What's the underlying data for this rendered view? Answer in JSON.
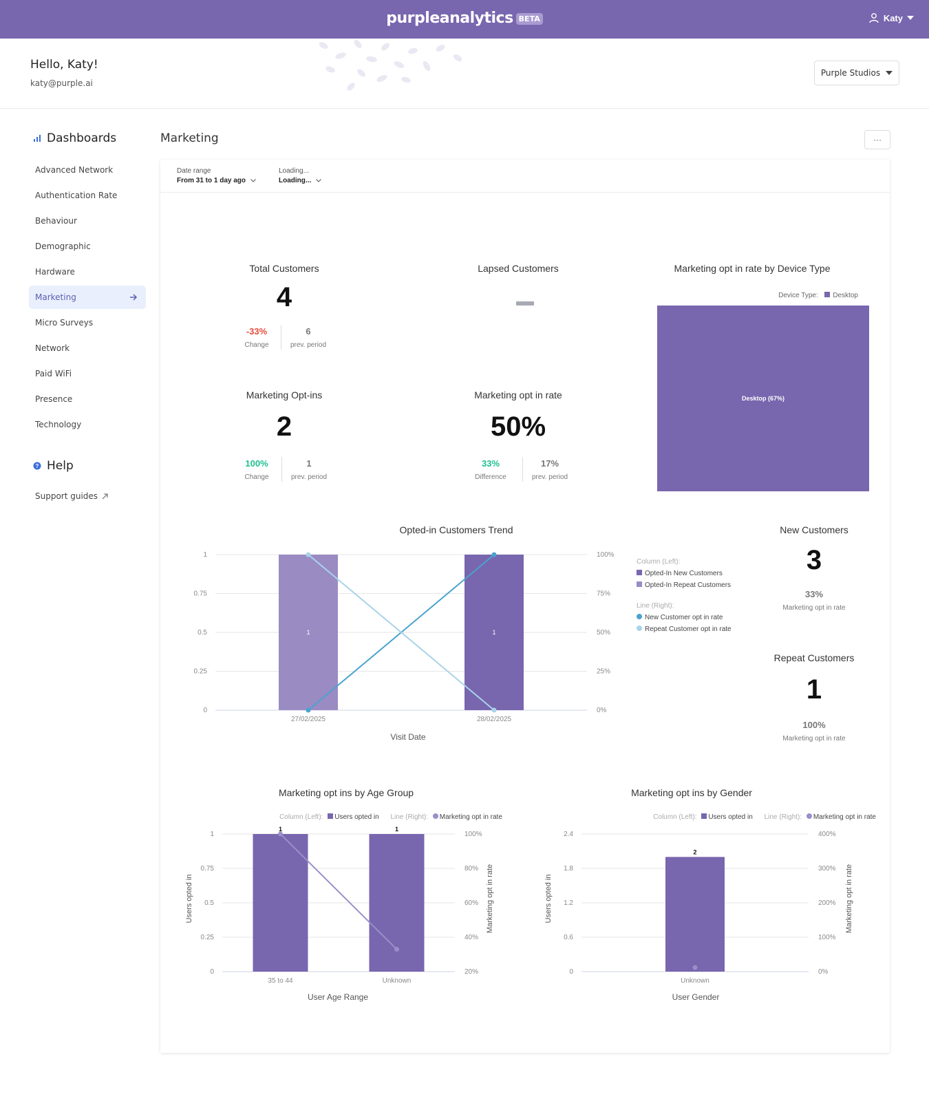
{
  "app": {
    "logo_text": "purpleanalytics",
    "beta_badge": "BETA",
    "user_name": "Katy"
  },
  "header": {
    "greeting": "Hello, Katy!",
    "email": "katy@purple.ai",
    "org_selector": "Purple Studios"
  },
  "sidebar": {
    "title": "Dashboards",
    "items": [
      {
        "label": "Advanced Network"
      },
      {
        "label": "Authentication Rate"
      },
      {
        "label": "Behaviour"
      },
      {
        "label": "Demographic"
      },
      {
        "label": "Hardware"
      },
      {
        "label": "Marketing",
        "active": true
      },
      {
        "label": "Micro Surveys"
      },
      {
        "label": "Network"
      },
      {
        "label": "Paid WiFi"
      },
      {
        "label": "Presence"
      },
      {
        "label": "Technology"
      }
    ],
    "help_title": "Help",
    "support_label": "Support guides"
  },
  "page": {
    "title": "Marketing",
    "more_label": "···"
  },
  "filters": {
    "date_range": {
      "label": "Date range",
      "value": "From 31 to 1 day ago"
    },
    "second": {
      "label": "Loading...",
      "value": "Loading..."
    }
  },
  "kpis": {
    "total_customers": {
      "title": "Total Customers",
      "value": "4",
      "change": "-33%",
      "change_label": "Change",
      "prev": "6",
      "prev_label": "prev. period"
    },
    "lapsed_customers": {
      "title": "Lapsed Customers"
    },
    "marketing_optins": {
      "title": "Marketing Opt-ins",
      "value": "2",
      "change": "100%",
      "change_label": "Change",
      "prev": "1",
      "prev_label": "prev. period"
    },
    "optin_rate": {
      "title": "Marketing opt in rate",
      "value": "50%",
      "diff": "33%",
      "diff_label": "Difference",
      "prev": "17%",
      "prev_label": "prev. period"
    },
    "new_customers": {
      "title": "New Customers",
      "value": "3",
      "rate": "33%",
      "rate_label": "Marketing opt in rate"
    },
    "repeat_customers": {
      "title": "Repeat Customers",
      "value": "1",
      "rate": "100%",
      "rate_label": "Marketing opt in rate"
    }
  },
  "colors": {
    "purple": "#7866ae",
    "light_purple": "#9a8bc3",
    "line_blue": "#4aa3cf",
    "line_lightblue": "#a9d3ea",
    "line_gray_purple": "#9a8fc9"
  },
  "chart_data": [
    {
      "id": "device_treemap",
      "type": "treemap",
      "title": "Marketing opt in rate by Device Type",
      "legend_title": "Device Type:",
      "legend": [
        "Desktop"
      ],
      "tiles": [
        {
          "label": "Desktop (67%)",
          "category": "Desktop",
          "value": 67
        }
      ]
    },
    {
      "id": "trend",
      "type": "bar",
      "title": "Opted-in Customers Trend",
      "xlabel": "Visit Date",
      "categories": [
        "27/02/2025",
        "28/02/2025"
      ],
      "y_ticks": [
        "0",
        "0.25",
        "0.5",
        "0.75",
        "1"
      ],
      "y2_ticks": [
        "0%",
        "25%",
        "50%",
        "75%",
        "100%"
      ],
      "ylim": [
        0,
        1
      ],
      "y2lim": [
        0,
        100
      ],
      "series": [
        {
          "name": "Opted-In New Customers",
          "axis": "left",
          "kind": "column",
          "values": [
            0,
            1
          ],
          "labels": [
            "",
            "1"
          ]
        },
        {
          "name": "Opted-In Repeat Customers",
          "axis": "left",
          "kind": "column",
          "values": [
            1,
            0
          ],
          "labels": [
            "1",
            ""
          ]
        },
        {
          "name": "New Customer opt in rate",
          "axis": "right",
          "kind": "line",
          "values": [
            0,
            100
          ]
        },
        {
          "name": "Repeat Customer opt in rate",
          "axis": "right",
          "kind": "line",
          "values": [
            100,
            0
          ]
        }
      ],
      "legend_groups": [
        {
          "title": "Column (Left):",
          "items": [
            "Opted-In New Customers",
            "Opted-In Repeat Customers"
          ]
        },
        {
          "title": "Line (Right):",
          "items": [
            "New Customer opt in rate",
            "Repeat Customer opt in rate"
          ]
        }
      ]
    },
    {
      "id": "age",
      "type": "bar",
      "title": "Marketing opt ins by Age Group",
      "xlabel": "User Age Range",
      "ylabel": "Users opted in",
      "y2label": "Marketing opt in rate",
      "categories": [
        "35 to 44",
        "Unknown"
      ],
      "y_ticks": [
        "0",
        "0.25",
        "0.5",
        "0.75",
        "1"
      ],
      "y2_ticks": [
        "20%",
        "40%",
        "60%",
        "80%",
        "100%"
      ],
      "ylim": [
        0,
        1
      ],
      "y2lim": [
        20,
        100
      ],
      "legend_col_title": "Column (Left):",
      "legend_col": "Users opted in",
      "legend_line_title": "Line (Right):",
      "legend_line": "Marketing opt in rate",
      "series": [
        {
          "name": "Users opted in",
          "axis": "left",
          "kind": "column",
          "values": [
            1,
            1
          ],
          "labels": [
            "1",
            "1"
          ]
        },
        {
          "name": "Marketing opt in rate",
          "axis": "right",
          "kind": "line",
          "values": [
            100,
            33
          ]
        }
      ]
    },
    {
      "id": "gender",
      "type": "bar",
      "title": "Marketing opt ins by Gender",
      "xlabel": "User Gender",
      "ylabel": "Users opted in",
      "y2label": "Marketing opt in rate",
      "categories": [
        "Unknown"
      ],
      "y_ticks": [
        "0",
        "0.6",
        "1.2",
        "1.8",
        "2.4"
      ],
      "y2_ticks": [
        "0%",
        "100%",
        "200%",
        "300%",
        "400%"
      ],
      "ylim": [
        0,
        2.4
      ],
      "y2lim": [
        0,
        400
      ],
      "legend_col_title": "Column (Left):",
      "legend_col": "Users opted in",
      "legend_line_title": "Line (Right):",
      "legend_line": "Marketing opt in rate",
      "series": [
        {
          "name": "Users opted in",
          "axis": "left",
          "kind": "column",
          "values": [
            2
          ],
          "labels": [
            "2"
          ]
        },
        {
          "name": "Marketing opt in rate",
          "axis": "right",
          "kind": "line",
          "values": [
            12
          ]
        }
      ]
    }
  ]
}
